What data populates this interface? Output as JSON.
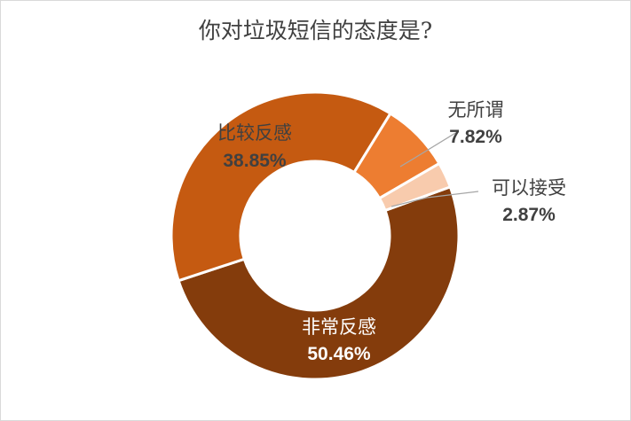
{
  "chart_data": {
    "type": "pie",
    "style": "doughnut",
    "title": "你对垃圾短信的态度是?",
    "slices": [
      {
        "label": "非常反感",
        "value_text": "50.46%",
        "value": 50.46,
        "color": "#843c0c",
        "label_color": "#ffffff"
      },
      {
        "label": "比较反感",
        "value_text": "38.85%",
        "value": 38.85,
        "color": "#c55a11",
        "label_color": "#404040"
      },
      {
        "label": "无所谓",
        "value_text": "7.82%",
        "value": 7.82,
        "color": "#ed7d31",
        "label_color": "#404040"
      },
      {
        "label": "可以接受",
        "value_text": "2.87%",
        "value": 2.87,
        "color": "#f8cbad",
        "label_color": "#404040"
      }
    ],
    "legend": "none",
    "leader_line_color": "#a6a6a6"
  }
}
